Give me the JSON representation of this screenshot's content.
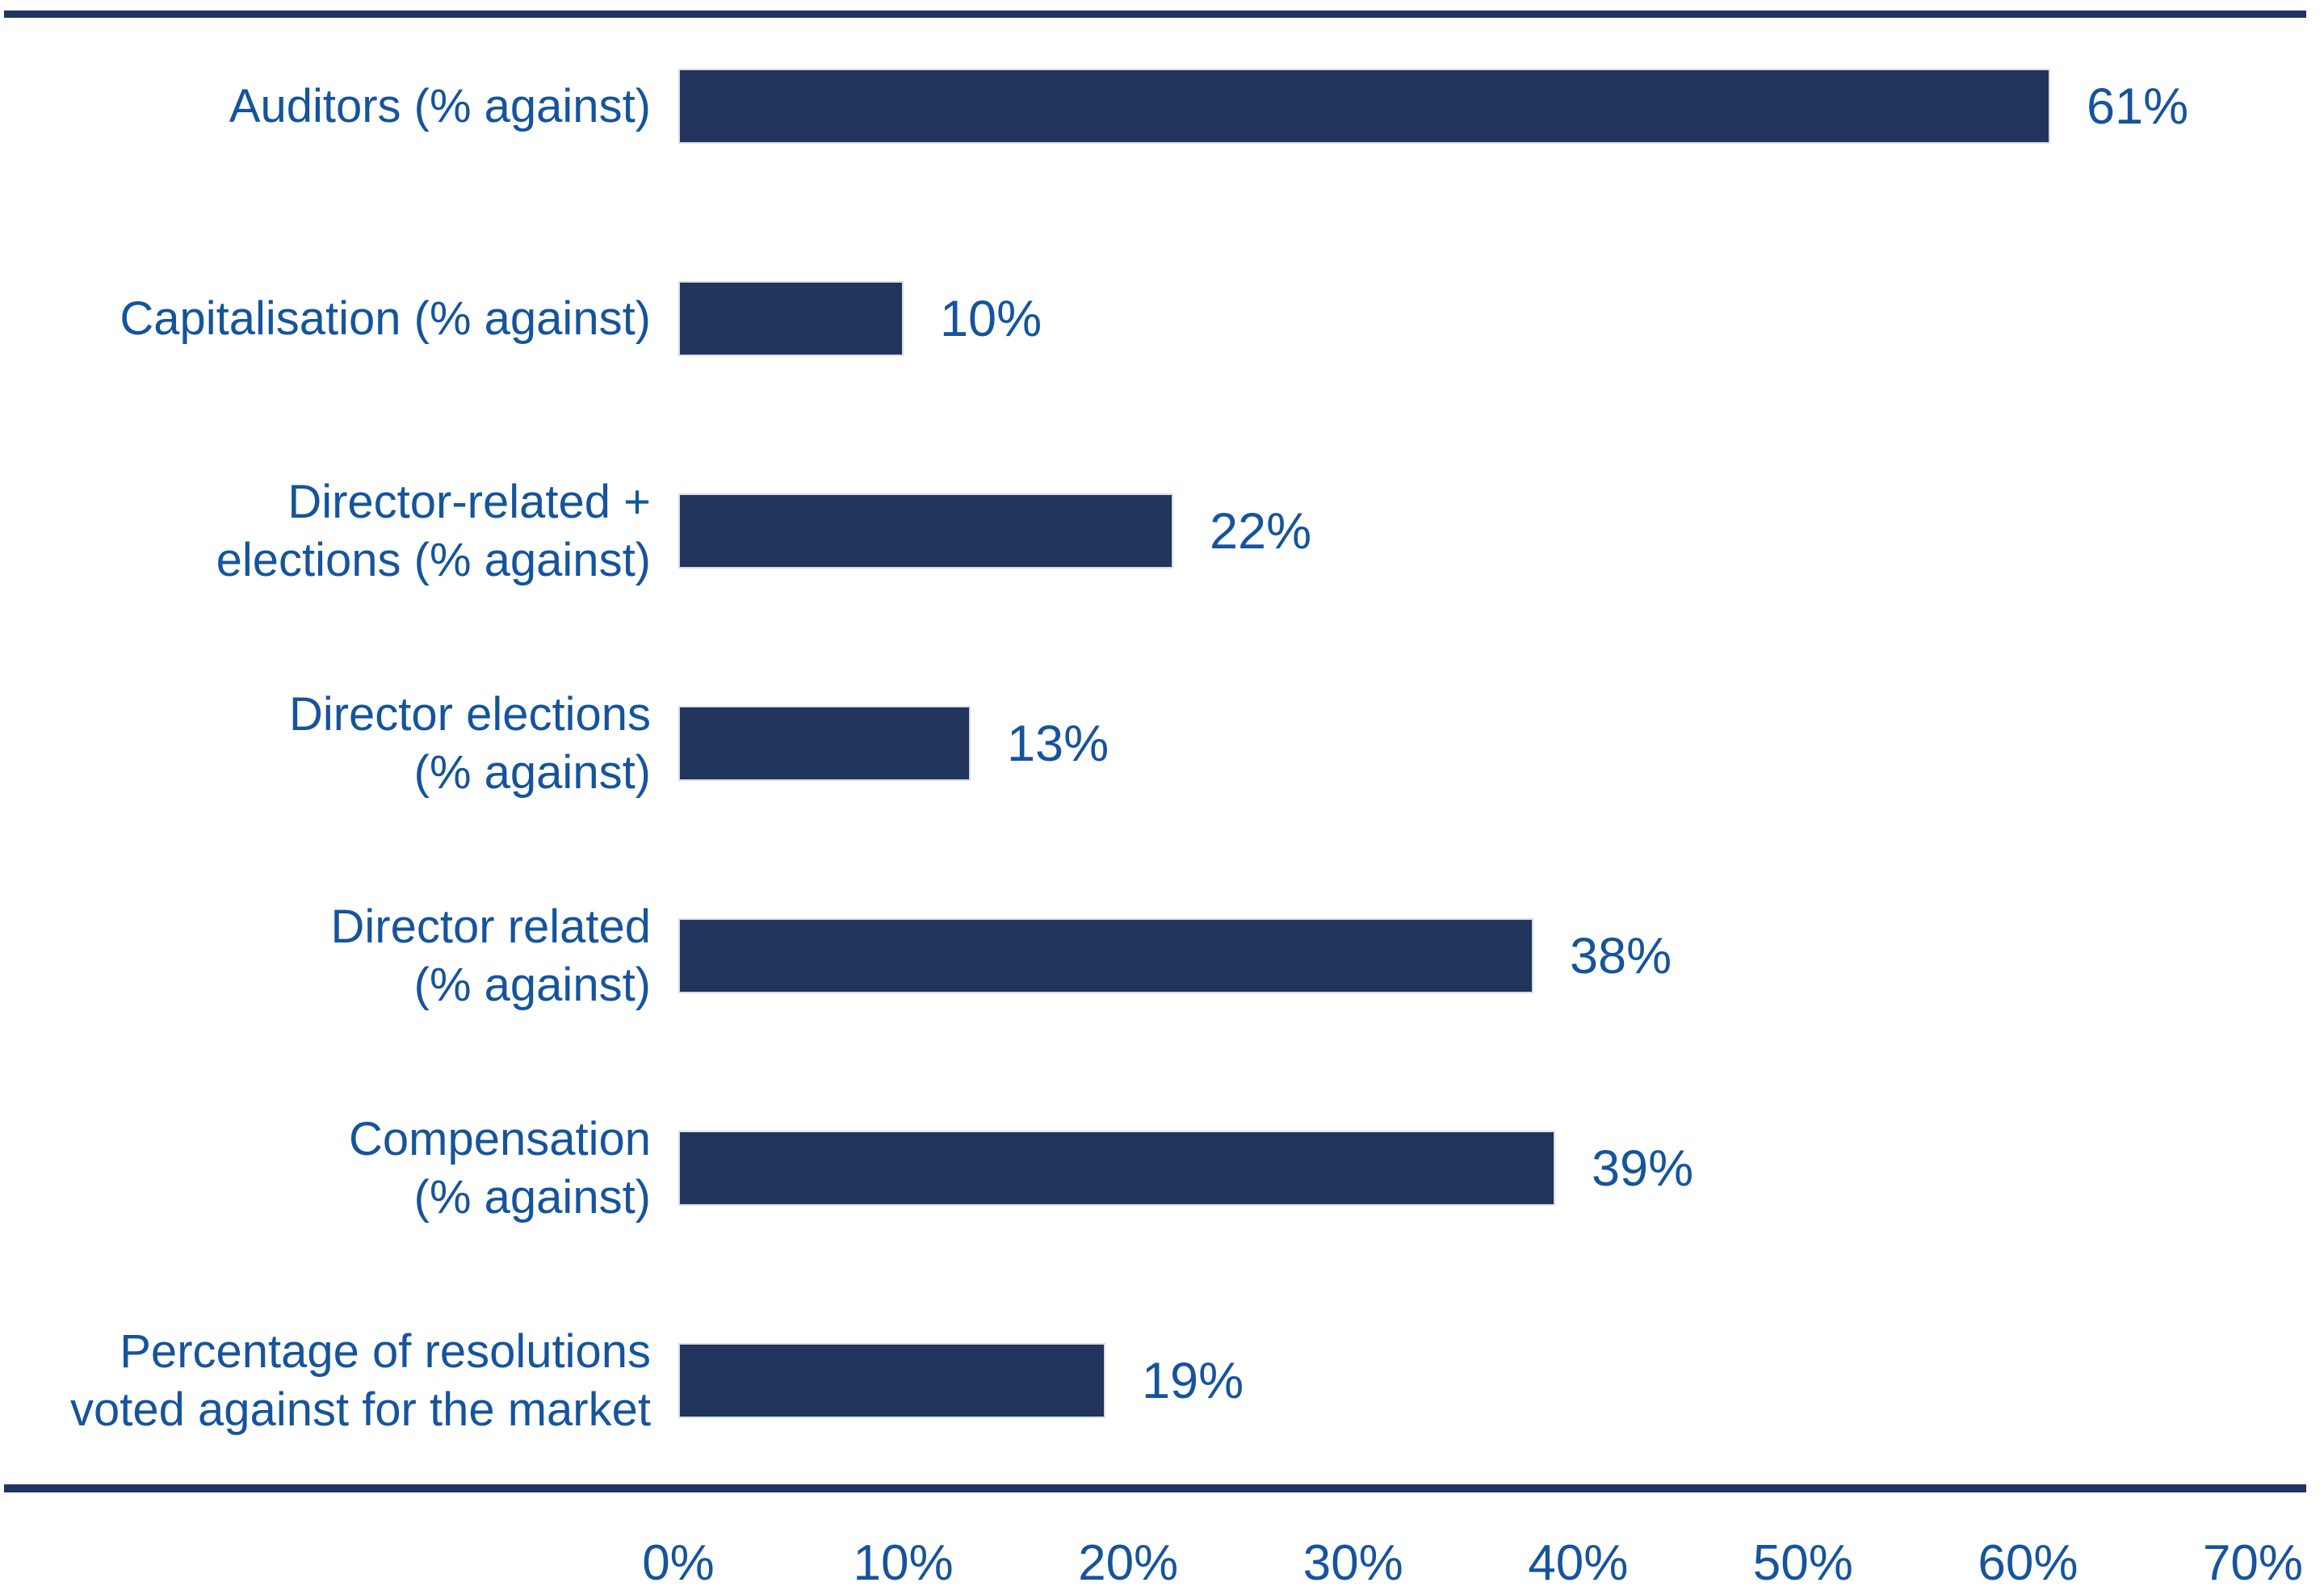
{
  "chart_data": {
    "type": "bar",
    "orientation": "horizontal",
    "title": "",
    "xlabel": "",
    "ylabel": "",
    "grid": false,
    "legend": false,
    "xlim": [
      0,
      70
    ],
    "x_tick_labels": [
      "0%",
      "10%",
      "20%",
      "30%",
      "40%",
      "50%",
      "60%",
      "70%"
    ],
    "categories": [
      "Auditors (% against)",
      "Capitalisation (% against)",
      "Director-related + elections (% against)",
      "Director elections (% against)",
      "Director related (% against)",
      "Compensation (% against)",
      "Percentage of resolutions voted against for the market"
    ],
    "label_lines": [
      [
        "Auditors (% against)"
      ],
      [
        "Capitalisation (% against)"
      ],
      [
        "Director-related +",
        "elections (% against)"
      ],
      [
        "Director elections",
        "(% against)"
      ],
      [
        "Director related",
        "(% against)"
      ],
      [
        "Compensation",
        "(% against)"
      ],
      [
        "Percentage of resolutions",
        "voted against for the market"
      ]
    ],
    "values": [
      61,
      10,
      22,
      13,
      38,
      39,
      19
    ],
    "value_labels": [
      "61%",
      "10%",
      "22%",
      "13%",
      "38%",
      "39%",
      "19%"
    ],
    "colors": {
      "bar": "#21345c",
      "bar_edge": "#d9dde9",
      "text": "#15549d",
      "rule": "#1f3461",
      "background": "#ffffff"
    }
  }
}
